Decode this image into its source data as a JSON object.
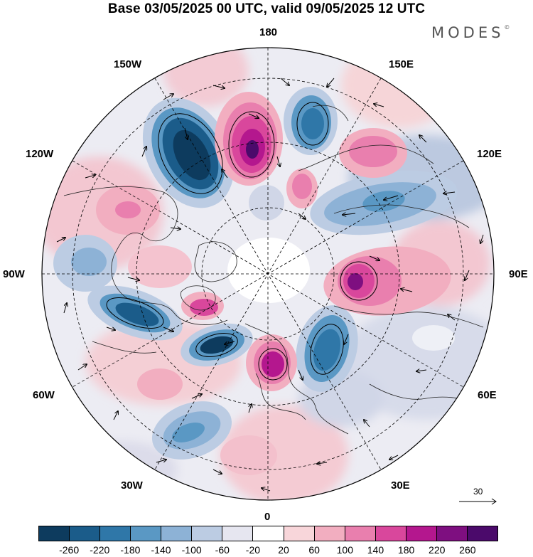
{
  "title": "Base 03/05/2025 00 UTC, valid 09/05/2025 12 UTC",
  "logo": "MODES",
  "logo_mark": "©",
  "longitude_labels": {
    "top": "180",
    "bottom": "0",
    "left": "90W",
    "right": "90E",
    "upper_left_1": "150W",
    "upper_left_2": "120W",
    "upper_right_1": "150E",
    "upper_right_2": "120E",
    "lower_left_1": "60W",
    "lower_left_2": "30W",
    "lower_right_1": "60E",
    "lower_right_2": "30E"
  },
  "reference_vector": "30",
  "colorbar": {
    "tick_labels": [
      "-260",
      "-220",
      "-180",
      "-140",
      "-100",
      "-60",
      "-20",
      "20",
      "60",
      "100",
      "140",
      "180",
      "220",
      "260"
    ],
    "colors": [
      "#0d3b5e",
      "#1b5c8a",
      "#2f77a8",
      "#5a98c4",
      "#8db2d6",
      "#bccce3",
      "#e6e6f0",
      "#ffffff",
      "#f8d6da",
      "#f2aec0",
      "#e97fae",
      "#d9479c",
      "#b4178e",
      "#7e0f80",
      "#4b0a6b"
    ]
  }
}
